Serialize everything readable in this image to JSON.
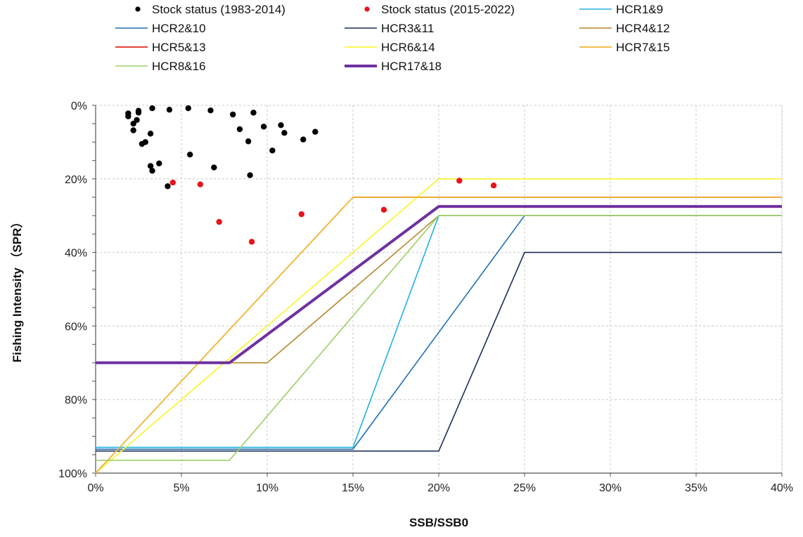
{
  "chart_data": {
    "type": "line",
    "title": "",
    "xlabel": "SSB/SSB0",
    "ylabel": "Fishing Intensity （SPR）",
    "xlim": [
      0,
      40
    ],
    "ylim": [
      0,
      100
    ],
    "y_inverted": true,
    "grid": true,
    "legend_position": "top",
    "x_ticks": [
      0,
      5,
      10,
      15,
      20,
      25,
      30,
      35,
      40
    ],
    "x_tick_labels": [
      "0%",
      "5%",
      "10%",
      "15%",
      "20%",
      "25%",
      "30%",
      "35%",
      "40%"
    ],
    "y_ticks": [
      0,
      20,
      40,
      60,
      80,
      100
    ],
    "y_tick_labels": [
      "0%",
      "20%",
      "40%",
      "60%",
      "80%",
      "100%"
    ],
    "series": [
      {
        "name": "Stock status (1983-2014)",
        "kind": "scatter",
        "color": "#000000",
        "points": [
          [
            1.9,
            2.2
          ],
          [
            1.9,
            3.0
          ],
          [
            2.2,
            5.0
          ],
          [
            2.2,
            6.8
          ],
          [
            2.4,
            4.0
          ],
          [
            2.5,
            1.5
          ],
          [
            2.5,
            2.0
          ],
          [
            2.7,
            10.5
          ],
          [
            2.9,
            10.0
          ],
          [
            3.2,
            7.7
          ],
          [
            3.2,
            16.5
          ],
          [
            3.3,
            17.8
          ],
          [
            3.3,
            0.8
          ],
          [
            3.7,
            15.8
          ],
          [
            4.2,
            22.0
          ],
          [
            4.3,
            1.2
          ],
          [
            5.4,
            0.8
          ],
          [
            5.5,
            13.4
          ],
          [
            6.7,
            1.4
          ],
          [
            6.9,
            16.9
          ],
          [
            8.0,
            2.5
          ],
          [
            8.4,
            6.5
          ],
          [
            8.9,
            9.8
          ],
          [
            9.0,
            19.0
          ],
          [
            9.2,
            2.0
          ],
          [
            9.8,
            5.8
          ],
          [
            10.3,
            12.3
          ],
          [
            10.8,
            5.4
          ],
          [
            11.0,
            7.5
          ],
          [
            12.1,
            9.3
          ],
          [
            12.8,
            7.2
          ]
        ]
      },
      {
        "name": "Stock status (2015-2022)",
        "kind": "scatter",
        "color": "#e8141b",
        "points": [
          [
            4.5,
            21.0
          ],
          [
            6.1,
            21.5
          ],
          [
            7.2,
            31.7
          ],
          [
            9.1,
            37.1
          ],
          [
            12.0,
            29.6
          ],
          [
            16.8,
            28.4
          ],
          [
            21.2,
            20.5
          ],
          [
            23.2,
            21.8
          ]
        ]
      },
      {
        "name": "HCR1&9",
        "kind": "line",
        "color": "#22b0e0",
        "width": 1.6,
        "points": [
          [
            0,
            93
          ],
          [
            15,
            93
          ],
          [
            20,
            30
          ],
          [
            40,
            30
          ]
        ]
      },
      {
        "name": "HCR2&10",
        "kind": "line",
        "color": "#1f6fb4",
        "width": 1.6,
        "points": [
          [
            0,
            93.5
          ],
          [
            15,
            93.5
          ],
          [
            25,
            30
          ],
          [
            40,
            30
          ]
        ]
      },
      {
        "name": "HCR3&11",
        "kind": "line",
        "color": "#1b2d5b",
        "width": 1.6,
        "points": [
          [
            0,
            94
          ],
          [
            20,
            94
          ],
          [
            25,
            40
          ],
          [
            40,
            40
          ]
        ]
      },
      {
        "name": "HCR4&12",
        "kind": "line",
        "color": "#b8862b",
        "width": 1.6,
        "points": [
          [
            0,
            70
          ],
          [
            10,
            70
          ],
          [
            20,
            30
          ],
          [
            40,
            30
          ]
        ]
      },
      {
        "name": "HCR5&13",
        "kind": "line",
        "color": "#e52620",
        "width": 1.8,
        "points": [
          [
            15,
            25
          ],
          [
            40,
            25
          ]
        ]
      },
      {
        "name": "HCR6&14",
        "kind": "line",
        "color": "#f9f43c",
        "width": 1.8,
        "points": [
          [
            0,
            100
          ],
          [
            20,
            20
          ],
          [
            40,
            20
          ]
        ]
      },
      {
        "name": "HCR7&15",
        "kind": "line",
        "color": "#f0b432",
        "width": 1.8,
        "points": [
          [
            0,
            100
          ],
          [
            15,
            25
          ],
          [
            40,
            25
          ]
        ]
      },
      {
        "name": "HCR8&16",
        "kind": "line",
        "color": "#9ccf63",
        "width": 1.6,
        "points": [
          [
            0,
            96.5
          ],
          [
            7.8,
            96.5
          ],
          [
            20,
            30
          ],
          [
            40,
            30
          ]
        ]
      },
      {
        "name": "HCR17&18",
        "kind": "line",
        "color": "#7030a0",
        "width": 4,
        "points": [
          [
            0,
            70
          ],
          [
            7.8,
            70
          ],
          [
            20,
            27.5
          ],
          [
            40,
            27.5
          ]
        ]
      }
    ]
  }
}
